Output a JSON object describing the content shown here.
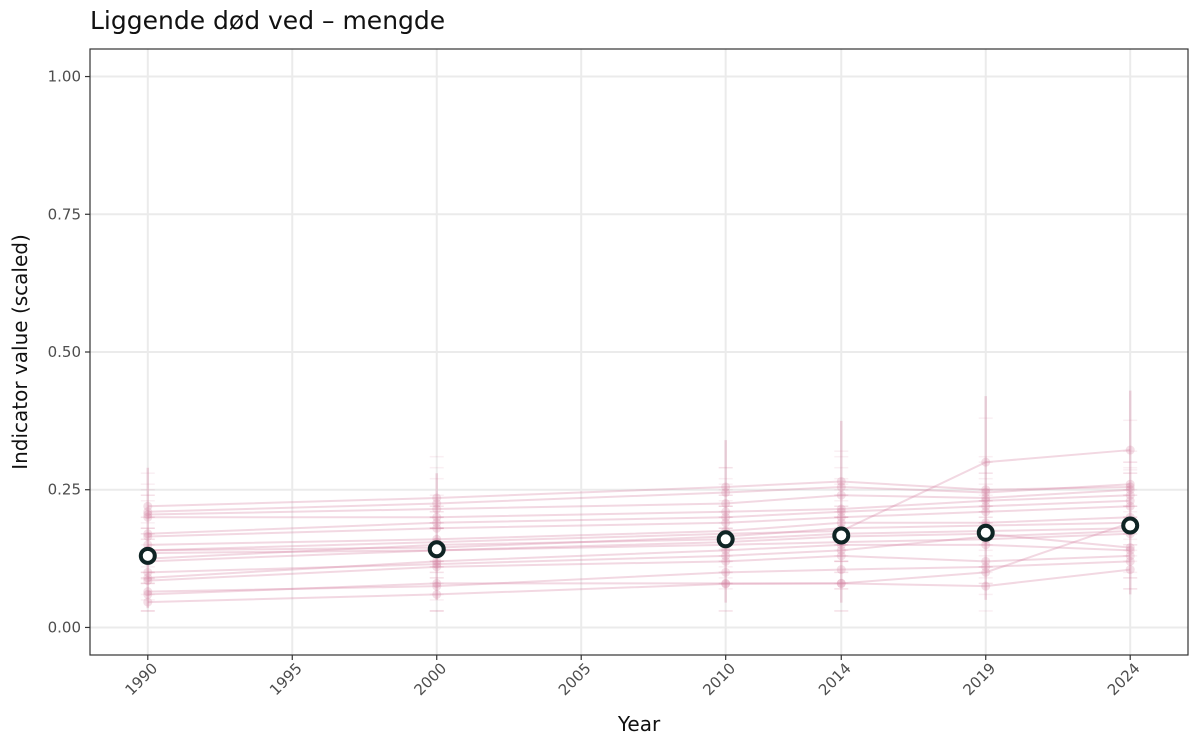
{
  "chart_data": {
    "type": "line",
    "title": "Liggende død ved – mengde",
    "xlabel": "Year",
    "ylabel": "Indicator value (scaled)",
    "xlim": [
      1988,
      2026
    ],
    "ylim": [
      -0.05,
      1.05
    ],
    "x_ticks": [
      1990,
      1995,
      2000,
      2005,
      2010,
      2014,
      2019,
      2024
    ],
    "y_ticks": [
      0,
      0.25,
      0.5,
      0.75,
      1
    ],
    "y_tick_labels": [
      "0.00",
      "0.25",
      "0.50",
      "0.75",
      "1.00"
    ],
    "grid": true,
    "legend": "none",
    "mean_series": {
      "x": [
        1990,
        2000,
        2010,
        2014,
        2019,
        2024
      ],
      "y": [
        0.13,
        0.142,
        0.16,
        0.167,
        0.172,
        0.185
      ]
    },
    "region_series": {
      "x": [
        1990,
        2000,
        2010,
        2014,
        2019,
        2024
      ],
      "lines": [
        [
          0.046,
          0.06,
          0.079,
          0.08,
          0.1,
          0.19
        ],
        [
          0.06,
          0.08,
          0.08,
          0.08,
          0.075,
          0.105
        ],
        [
          0.065,
          0.075,
          0.1,
          0.105,
          0.11,
          0.12
        ],
        [
          0.085,
          0.11,
          0.12,
          0.13,
          0.12,
          0.13
        ],
        [
          0.09,
          0.12,
          0.14,
          0.15,
          0.15,
          0.14
        ],
        [
          0.12,
          0.14,
          0.15,
          0.155,
          0.16,
          0.17
        ],
        [
          0.125,
          0.15,
          0.16,
          0.17,
          0.175,
          0.18
        ],
        [
          0.14,
          0.145,
          0.165,
          0.18,
          0.185,
          0.19
        ],
        [
          0.14,
          0.155,
          0.17,
          0.175,
          0.3,
          0.322
        ],
        [
          0.15,
          0.16,
          0.175,
          0.19,
          0.19,
          0.2
        ],
        [
          0.165,
          0.18,
          0.19,
          0.2,
          0.21,
          0.22
        ],
        [
          0.17,
          0.19,
          0.2,
          0.21,
          0.22,
          0.23
        ],
        [
          0.2,
          0.2,
          0.21,
          0.215,
          0.23,
          0.24
        ],
        [
          0.205,
          0.215,
          0.225,
          0.24,
          0.235,
          0.25
        ],
        [
          0.21,
          0.225,
          0.245,
          0.255,
          0.245,
          0.26
        ],
        [
          0.22,
          0.235,
          0.255,
          0.265,
          0.25,
          0.255
        ],
        [
          0.135,
          0.14,
          0.155,
          0.165,
          0.17,
          0.145
        ],
        [
          0.1,
          0.115,
          0.13,
          0.14,
          0.165,
          0.175
        ]
      ],
      "ci_upper": [
        0.29,
        0.28,
        0.34,
        0.375,
        0.42,
        0.43
      ],
      "ci_lower": [
        0.035,
        0.05,
        0.045,
        0.045,
        0.05,
        0.06
      ]
    },
    "colors": {
      "region": "#d47e9e",
      "mean_stroke": "#0f2424",
      "mean_fill": "#ffffff",
      "grid": "#ebebeb",
      "panel_border": "#333333"
    }
  }
}
